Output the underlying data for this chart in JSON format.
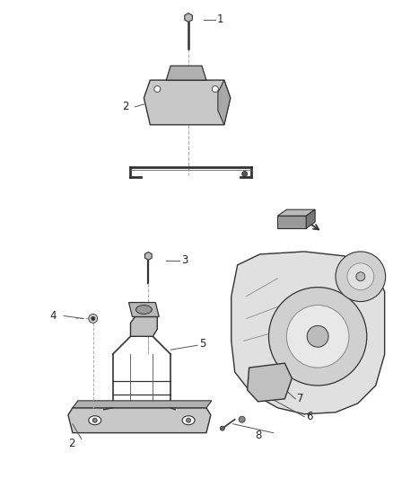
{
  "background_color": "#ffffff",
  "fig_width": 4.38,
  "fig_height": 5.33,
  "dpi": 100,
  "label_fontsize": 8.5,
  "line_color": "#555555",
  "dark_color": "#333333",
  "part_color": "#888888",
  "light_gray": "#dddddd",
  "mid_gray": "#aaaaaa"
}
